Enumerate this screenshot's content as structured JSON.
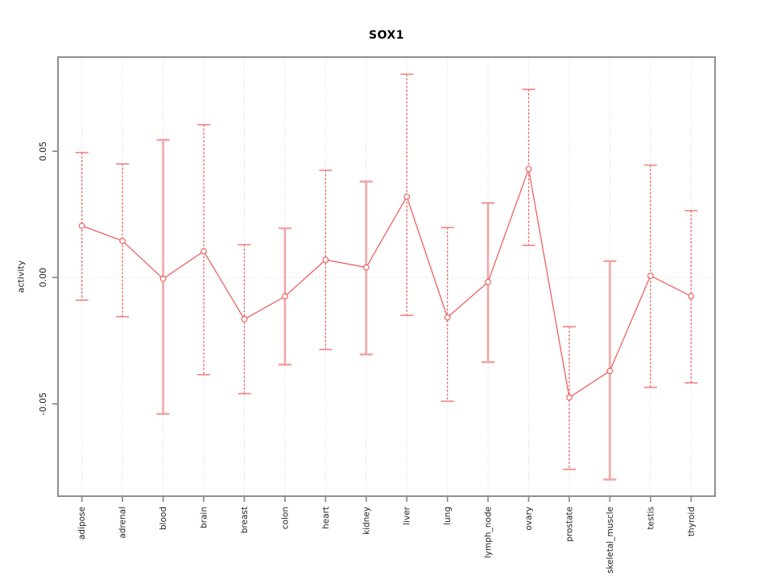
{
  "title": "SOX1",
  "chart_data": {
    "type": "line",
    "title": "SOX1",
    "xlabel": "",
    "ylabel": "activity",
    "legend": "none",
    "categories": [
      "adipose",
      "adrenal",
      "blood",
      "brain",
      "breast",
      "colon",
      "heart",
      "kidney",
      "liver",
      "lung",
      "lymph_node",
      "ovary",
      "prostate",
      "skeletal_muscle",
      "testis",
      "thyroid"
    ],
    "series": [
      {
        "name": "activity",
        "values": [
          0.0205,
          0.0145,
          -0.0005,
          0.0104,
          -0.0165,
          -0.0075,
          0.007,
          0.004,
          0.032,
          -0.0158,
          -0.0018,
          0.043,
          -0.0475,
          -0.037,
          0.0007,
          -0.0074
        ],
        "error_low": [
          -0.009,
          -0.0155,
          -0.054,
          -0.0385,
          -0.046,
          -0.0345,
          -0.0285,
          -0.0305,
          -0.015,
          -0.049,
          -0.0335,
          0.0127,
          -0.076,
          -0.08,
          -0.0435,
          -0.0417
        ],
        "error_high": [
          0.0495,
          0.045,
          0.0545,
          0.0605,
          0.013,
          0.0195,
          0.0425,
          0.038,
          0.0805,
          0.0198,
          0.0295,
          0.0745,
          -0.0195,
          0.0065,
          0.0445,
          0.0265
        ],
        "bar_styles": [
          "dashed",
          "dashed",
          "solid",
          "dashed",
          "dashed",
          "solid",
          "dashed",
          "solid",
          "dashed",
          "dashed",
          "solid",
          "dashed",
          "dashed",
          "solid",
          "dashed",
          "dashed"
        ]
      }
    ],
    "yticks": [
      -0.05,
      0,
      0.05
    ],
    "ytick_labels": [
      "-0.05",
      "0.00",
      "0.05"
    ],
    "ylim": [
      -0.0866,
      0.0873
    ],
    "grid": {
      "vertical_per_category": true,
      "zero_line_dotted": true,
      "horizontal_other": false
    },
    "marker": "open-circle",
    "colors": {
      "line": "#ee6161",
      "dashed_bar": "#ee6161",
      "solid_bar": "#f2a6a6",
      "cap": "#f08484",
      "marker_fill": "#ffffff",
      "grid": "#dcdcdc",
      "zero_line": "#dedede",
      "frame": "#8f8f8f",
      "tick": "#8f8f8f",
      "text": "#222222"
    }
  }
}
